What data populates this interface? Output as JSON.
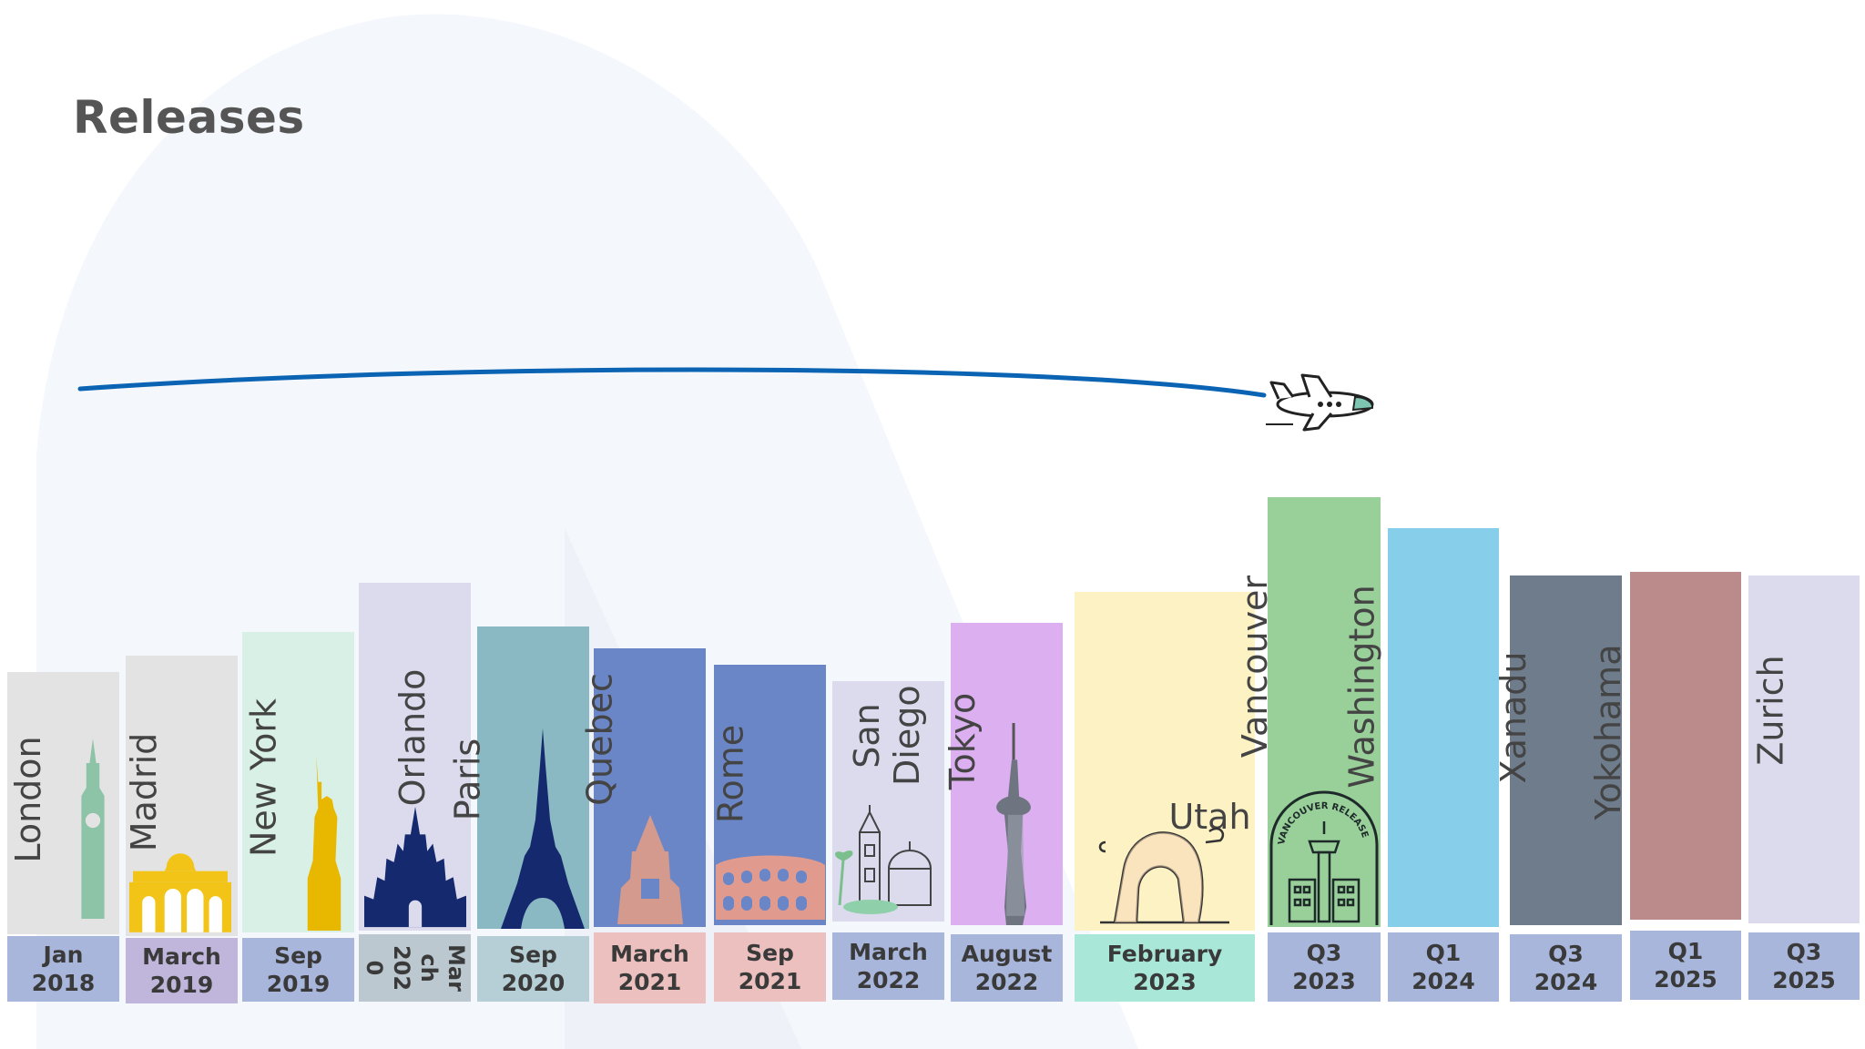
{
  "title": "Releases",
  "releases": [
    {
      "city": "London",
      "date_line1": "Jan",
      "date_line2": "2018",
      "icon": "big-ben-icon"
    },
    {
      "city": "Madrid",
      "date_line1": "March",
      "date_line2": "2019",
      "icon": "puerta-de-alcala-icon"
    },
    {
      "city": "New York",
      "date_line1": "Sep",
      "date_line2": "2019",
      "icon": "statue-of-liberty-icon"
    },
    {
      "city": "Orlando",
      "date_line1": "Mar ch 202 0",
      "date_line2": "",
      "icon": "castle-icon"
    },
    {
      "city": "Paris",
      "date_line1": "Sep",
      "date_line2": "2020",
      "icon": "eiffel-tower-icon"
    },
    {
      "city": "Quebec",
      "date_line1": "March",
      "date_line2": "2021",
      "icon": "chateau-frontenac-icon"
    },
    {
      "city": "Rome",
      "date_line1": "Sep",
      "date_line2": "2021",
      "icon": "colosseum-icon"
    },
    {
      "city": "San Diego",
      "date_line1": "March",
      "date_line2": "2022",
      "icon": "california-tower-icon"
    },
    {
      "city": "Tokyo",
      "date_line1": "August",
      "date_line2": "2022",
      "icon": "tokyo-tower-icon"
    },
    {
      "city": "Utah",
      "date_line1": "February",
      "date_line2": "2023",
      "icon": "delicate-arch-icon"
    },
    {
      "city": "Vancouver",
      "date_line1": "Q3",
      "date_line2": "2023",
      "icon": "vancouver-badge-icon",
      "badge_text": "VANCOUVER RELEASE"
    },
    {
      "city": "Washington",
      "date_line1": "Q1",
      "date_line2": "2024",
      "icon": ""
    },
    {
      "city": "Xanadu",
      "date_line1": "Q3",
      "date_line2": "2024",
      "icon": ""
    },
    {
      "city": "Yokohama",
      "date_line1": "Q1",
      "date_line2": "2025",
      "icon": ""
    },
    {
      "city": "Zurich",
      "date_line1": "Q3",
      "date_line2": "2025",
      "icon": ""
    }
  ],
  "colors": {
    "route_line": "#0b64b3",
    "title_text": "#555555",
    "date_default": "#a9b6dc"
  }
}
